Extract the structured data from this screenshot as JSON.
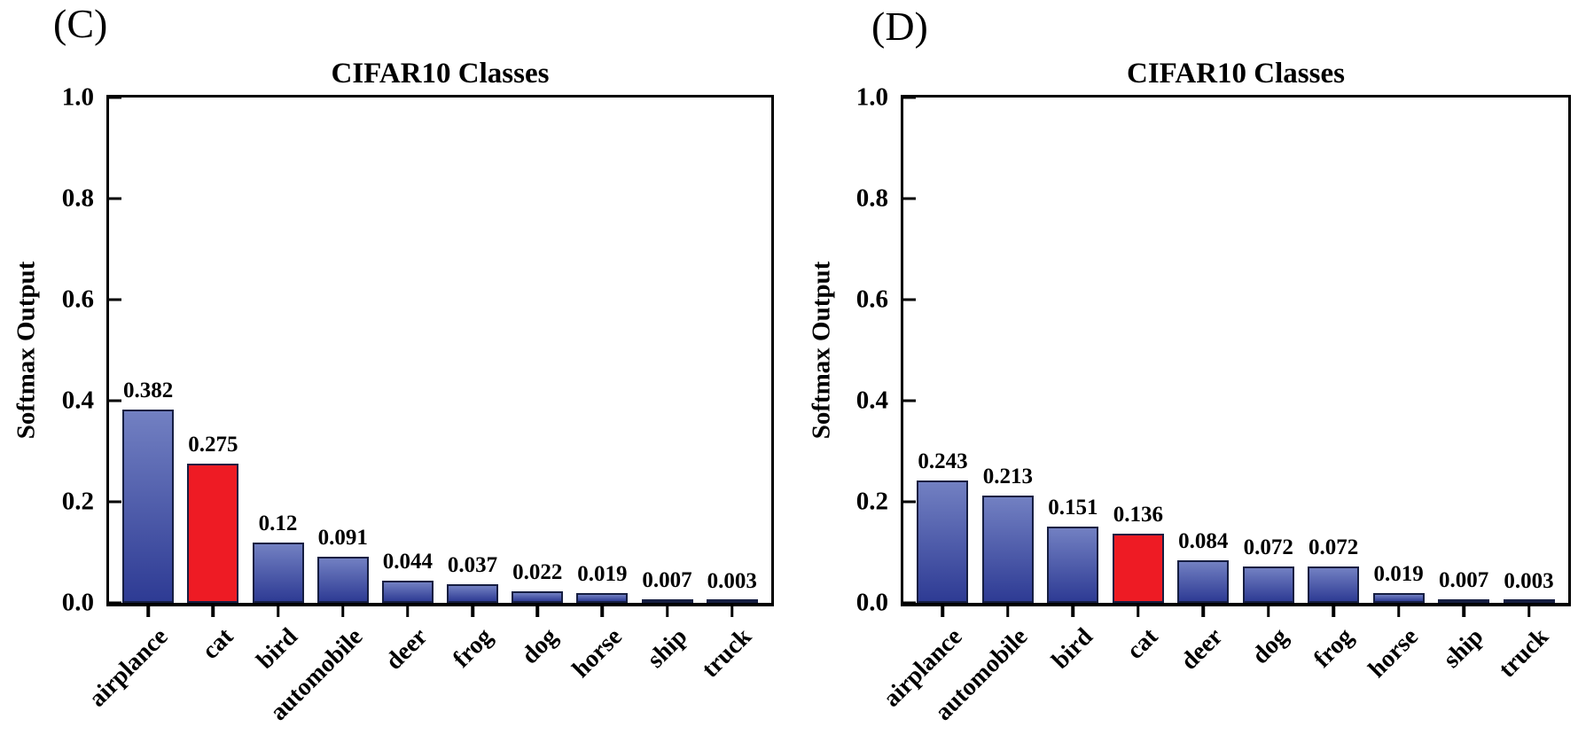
{
  "figure": {
    "background": "#ffffff",
    "colors": {
      "bar_blue_top": "#7280c2",
      "bar_blue_bottom": "#2e3b94",
      "bar_highlight_red": "#ee1b24",
      "bar_border": "#161e41",
      "axis": "#000000",
      "text": "#000000"
    },
    "panels": [
      {
        "id": "C",
        "panel_label": "(C)",
        "title": "CIFAR10 Classes",
        "ylabel": "Softmax Output",
        "ytick_labels": [
          "1.0",
          "0.8",
          "0.6",
          "0.4",
          "0.2",
          "0.0"
        ],
        "ytick_values": [
          1.0,
          0.8,
          0.6,
          0.4,
          0.2,
          0.0
        ],
        "categories": [
          "airplance",
          "cat",
          "bird",
          "automobile",
          "deer",
          "frog",
          "dog",
          "horse",
          "ship",
          "truck"
        ],
        "values": [
          0.382,
          0.275,
          0.12,
          0.091,
          0.044,
          0.037,
          0.022,
          0.019,
          0.007,
          0.003
        ],
        "value_labels": [
          "0.382",
          "0.275",
          "0.12",
          "0.091",
          "0.044",
          "0.037",
          "0.022",
          "0.019",
          "0.007",
          "0.003"
        ],
        "highlight_index": 1
      },
      {
        "id": "D",
        "panel_label": "(D)",
        "title": "CIFAR10 Classes",
        "ylabel": "Softmax Output",
        "ytick_labels": [
          "1.0",
          "0.8",
          "0.6",
          "0.4",
          "0.2",
          "0.0"
        ],
        "ytick_values": [
          1.0,
          0.8,
          0.6,
          0.4,
          0.2,
          0.0
        ],
        "categories": [
          "airplance",
          "automobile",
          "bird",
          "cat",
          "deer",
          "dog",
          "frog",
          "horse",
          "ship",
          "truck"
        ],
        "values": [
          0.243,
          0.213,
          0.151,
          0.136,
          0.084,
          0.072,
          0.072,
          0.019,
          0.007,
          0.003
        ],
        "value_labels": [
          "0.243",
          "0.213",
          "0.151",
          "0.136",
          "0.084",
          "0.072",
          "0.072",
          "0.019",
          "0.007",
          "0.003"
        ],
        "highlight_index": 3
      }
    ]
  },
  "chart_data": [
    {
      "type": "bar",
      "panel": "(C)",
      "title": "CIFAR10 Classes",
      "xlabel": "",
      "ylabel": "Softmax Output",
      "ylim": [
        0.0,
        1.0
      ],
      "ytick_step": 0.2,
      "grid": false,
      "legend": "none",
      "categories": [
        "airplance",
        "cat",
        "bird",
        "automobile",
        "deer",
        "frog",
        "dog",
        "horse",
        "ship",
        "truck"
      ],
      "values": [
        0.382,
        0.275,
        0.12,
        0.091,
        0.044,
        0.037,
        0.022,
        0.019,
        0.007,
        0.003
      ],
      "data_labels": [
        "0.382",
        "0.275",
        "0.12",
        "0.091",
        "0.044",
        "0.037",
        "0.022",
        "0.019",
        "0.007",
        "0.003"
      ],
      "bar_colors": [
        "blue-gradient",
        "red",
        "blue-gradient",
        "blue-gradient",
        "blue-gradient",
        "blue-gradient",
        "blue-gradient",
        "blue-gradient",
        "blue-gradient",
        "blue-gradient"
      ],
      "highlighted_category": "cat"
    },
    {
      "type": "bar",
      "panel": "(D)",
      "title": "CIFAR10 Classes",
      "xlabel": "",
      "ylabel": "Softmax Output",
      "ylim": [
        0.0,
        1.0
      ],
      "ytick_step": 0.2,
      "grid": false,
      "legend": "none",
      "categories": [
        "airplance",
        "automobile",
        "bird",
        "cat",
        "deer",
        "dog",
        "frog",
        "horse",
        "ship",
        "truck"
      ],
      "values": [
        0.243,
        0.213,
        0.151,
        0.136,
        0.084,
        0.072,
        0.072,
        0.019,
        0.007,
        0.003
      ],
      "data_labels": [
        "0.243",
        "0.213",
        "0.151",
        "0.136",
        "0.084",
        "0.072",
        "0.072",
        "0.019",
        "0.007",
        "0.003"
      ],
      "bar_colors": [
        "blue-gradient",
        "blue-gradient",
        "blue-gradient",
        "red",
        "blue-gradient",
        "blue-gradient",
        "blue-gradient",
        "blue-gradient",
        "blue-gradient",
        "blue-gradient"
      ],
      "highlighted_category": "cat"
    }
  ]
}
